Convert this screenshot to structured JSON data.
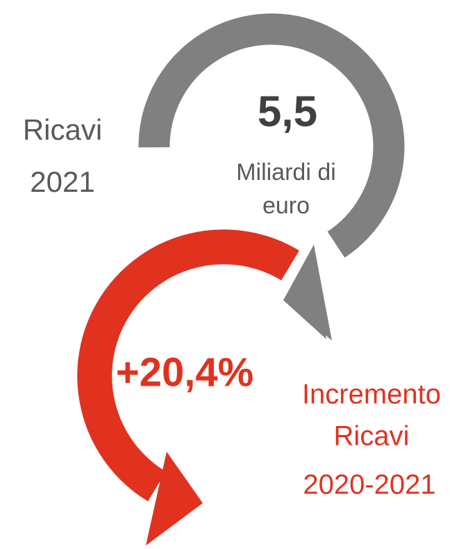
{
  "left_label": {
    "line1": "Ricavi",
    "line2": "2021"
  },
  "revenue": {
    "value": "5,5",
    "unit_line1": "Miliardi di",
    "unit_line2": "euro"
  },
  "growth": {
    "value": "+20,4%",
    "label_line1": "Incremento",
    "label_line2": "Ricavi",
    "label_line3": "2020-2021"
  }
}
